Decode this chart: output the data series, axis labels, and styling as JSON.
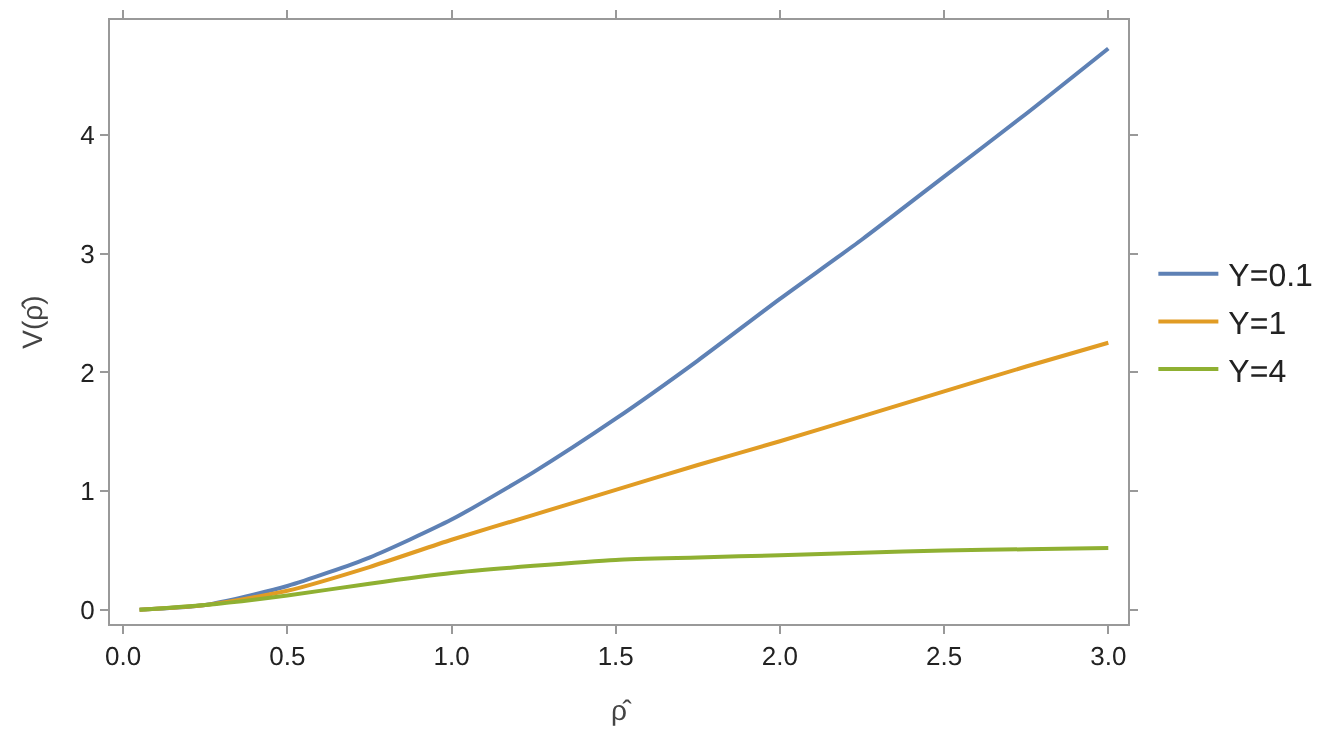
{
  "chart_data": {
    "type": "line",
    "xlabel": "ρ̂",
    "ylabel": "V(ρ̂)",
    "x": [
      0.05,
      0.25,
      0.5,
      0.75,
      1.0,
      1.25,
      1.5,
      1.75,
      2.0,
      2.25,
      2.5,
      2.75,
      3.0
    ],
    "series": [
      {
        "name": "Y=0.1",
        "color": "#5e81b5",
        "values": [
          0,
          0.04,
          0.2,
          0.44,
          0.76,
          1.16,
          1.61,
          2.1,
          2.62,
          3.12,
          3.65,
          4.18,
          4.73
        ]
      },
      {
        "name": "Y=1",
        "color": "#e19c24",
        "values": [
          0,
          0.04,
          0.16,
          0.36,
          0.59,
          0.8,
          1.01,
          1.22,
          1.42,
          1.63,
          1.84,
          2.05,
          2.25
        ]
      },
      {
        "name": "Y=4",
        "color": "#8fb032",
        "values": [
          0,
          0.04,
          0.12,
          0.22,
          0.31,
          0.37,
          0.42,
          0.44,
          0.46,
          0.48,
          0.5,
          0.51,
          0.52
        ]
      }
    ],
    "xlim": [
      -0.04,
      3.06
    ],
    "ylim": [
      -0.12,
      4.97
    ],
    "xticks": [
      {
        "value": 0,
        "label": "0.0"
      },
      0.5,
      {
        "value": 1,
        "label": "1.0"
      },
      1.5,
      {
        "value": 2,
        "label": "2.0"
      },
      2.5,
      {
        "value": 3,
        "label": "3.0"
      }
    ],
    "yticks": [
      0,
      1,
      2,
      3,
      4
    ],
    "legend": "right",
    "marker": "none",
    "line_style": "solid"
  }
}
